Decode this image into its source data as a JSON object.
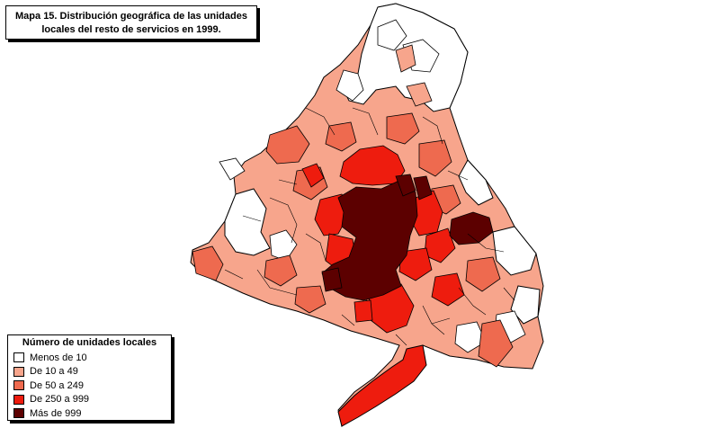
{
  "title": {
    "line1": "Mapa 15. Distribución geográfica de las unidades",
    "line2": "locales del resto de  servicios en 1999."
  },
  "legend": {
    "title": "Número de unidades locales",
    "items": [
      {
        "label": "Menos de 10",
        "color": "#ffffff"
      },
      {
        "label": "De 10 a 49",
        "color": "#f7a58c"
      },
      {
        "label": "De 50 a 249",
        "color": "#ee6a4f"
      },
      {
        "label": "De 250 a 999",
        "color": "#ee1c0e"
      },
      {
        "label": "Más de 999",
        "color": "#5c0000"
      }
    ]
  },
  "colors": {
    "border": "#000000",
    "white": "#ffffff",
    "light": "#f7a58c",
    "medium": "#ee6a4f",
    "red": "#ee1c0e",
    "dark": "#5c0000"
  }
}
